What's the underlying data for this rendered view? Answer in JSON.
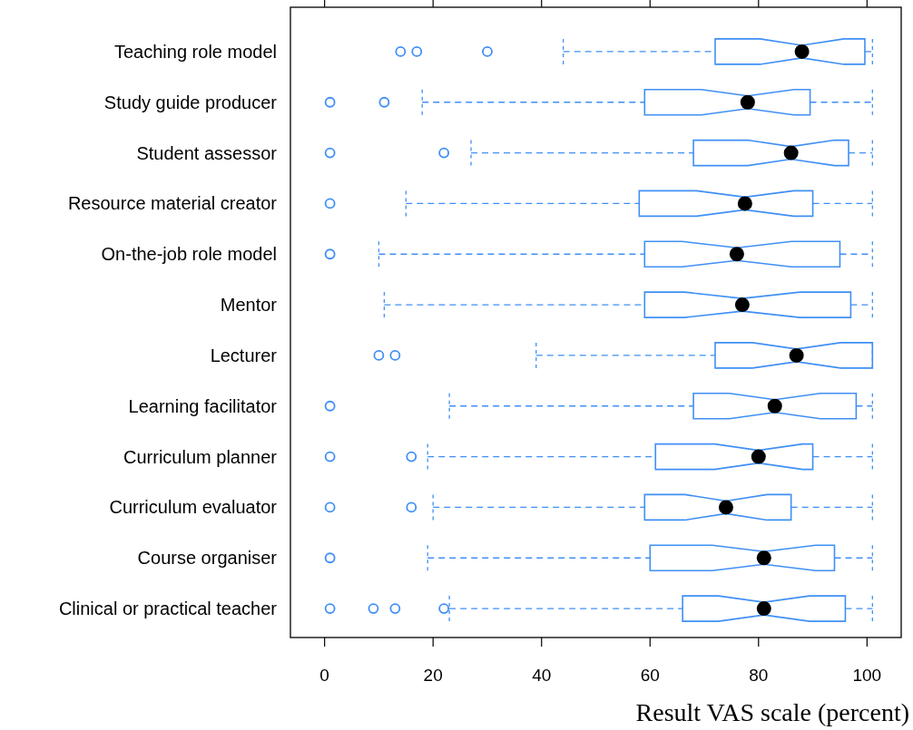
{
  "chart_data": {
    "type": "box",
    "orientation": "horizontal",
    "xlabel": "Result VAS scale (percent)",
    "categories": [
      "Teaching role model",
      "Study guide producer",
      "Student assessor",
      "Resource material creator",
      "On-the-job role model",
      "Mentor",
      "Lecturer",
      "Learning facilitator",
      "Curriculum planner",
      "Curriculum evaluator",
      "Course organiser",
      "Clinical or practical teacher"
    ],
    "xlim": [
      -6.3,
      106.3
    ],
    "xticks": [
      0,
      20,
      40,
      60,
      80,
      100
    ],
    "grid": false,
    "series": [
      {
        "color": "#3f8ff5",
        "boxes": [
          {
            "low": 44,
            "q1": 72,
            "median": 88,
            "q3": 99.6,
            "high": 101,
            "outliers": [
              14,
              17,
              30
            ]
          },
          {
            "low": 18,
            "q1": 59,
            "median": 78,
            "q3": 89.5,
            "high": 101,
            "outliers": [
              1,
              11
            ]
          },
          {
            "low": 27,
            "q1": 68,
            "median": 86,
            "q3": 96.6,
            "high": 101,
            "outliers": [
              1,
              22
            ]
          },
          {
            "low": 15,
            "q1": 58,
            "median": 77.5,
            "q3": 90,
            "high": 101,
            "outliers": [
              1
            ]
          },
          {
            "low": 10,
            "q1": 59,
            "median": 76,
            "q3": 95,
            "high": 101,
            "outliers": [
              1
            ]
          },
          {
            "low": 11,
            "q1": 59,
            "median": 77,
            "q3": 97,
            "high": 101
          },
          {
            "low": 39,
            "q1": 72,
            "median": 87,
            "q3": 101,
            "high": 101,
            "outliers": [
              10,
              13
            ]
          },
          {
            "low": 23,
            "q1": 68,
            "median": 83,
            "q3": 98,
            "high": 101,
            "outliers": [
              1
            ]
          },
          {
            "low": 19,
            "q1": 61,
            "median": 80,
            "q3": 90,
            "high": 101,
            "outliers": [
              1,
              16
            ]
          },
          {
            "low": 20,
            "q1": 59,
            "median": 74,
            "q3": 86,
            "high": 101,
            "outliers": [
              1,
              16
            ]
          },
          {
            "low": 19,
            "q1": 60,
            "median": 81,
            "q3": 94,
            "high": 101,
            "outliers": [
              1
            ]
          },
          {
            "low": 23,
            "q1": 66,
            "median": 81,
            "q3": 96,
            "high": 101,
            "outliers": [
              1,
              9,
              13,
              22
            ]
          }
        ]
      }
    ]
  }
}
